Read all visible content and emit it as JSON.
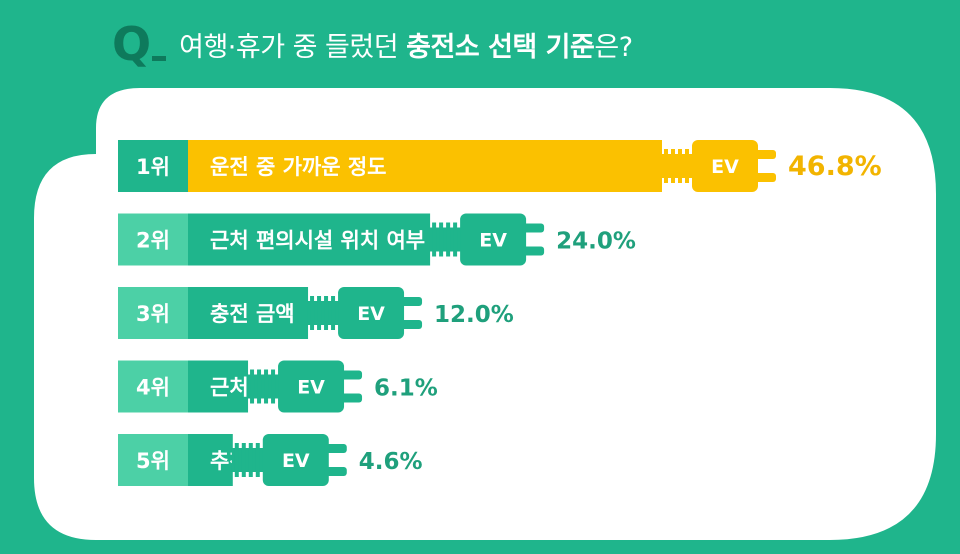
{
  "header": {
    "q_mark": "Q",
    "question_plain": "여행·휴가 중 들렀던 ",
    "question_strong": "충전소 선택 기준",
    "question_tail": "은?"
  },
  "colors": {
    "background": "#1fb58c",
    "card": "#ffffff",
    "bar": "#1fb58c",
    "rank_box": "#4cd0a6",
    "top_bar": "#fbc100",
    "top_rank_box": "#1fb58c",
    "top_value": "#f2b400",
    "value": "#1fa07c"
  },
  "chart_data": {
    "type": "bar",
    "orientation": "horizontal",
    "unit": "%",
    "plug_label": "EV",
    "categories": [
      "운전 중 가까운 정도",
      "근처 편의시설 위치 여부",
      "충전 금액",
      "근처 풍경",
      "추천받은 곳"
    ],
    "ranks": [
      "1위",
      "2위",
      "3위",
      "4위",
      "5위"
    ],
    "values": [
      46.8,
      24.0,
      12.0,
      6.1,
      4.6
    ],
    "value_labels": [
      "46.8%",
      "24.0%",
      "12.0%",
      "6.1%",
      "4.6%"
    ]
  }
}
